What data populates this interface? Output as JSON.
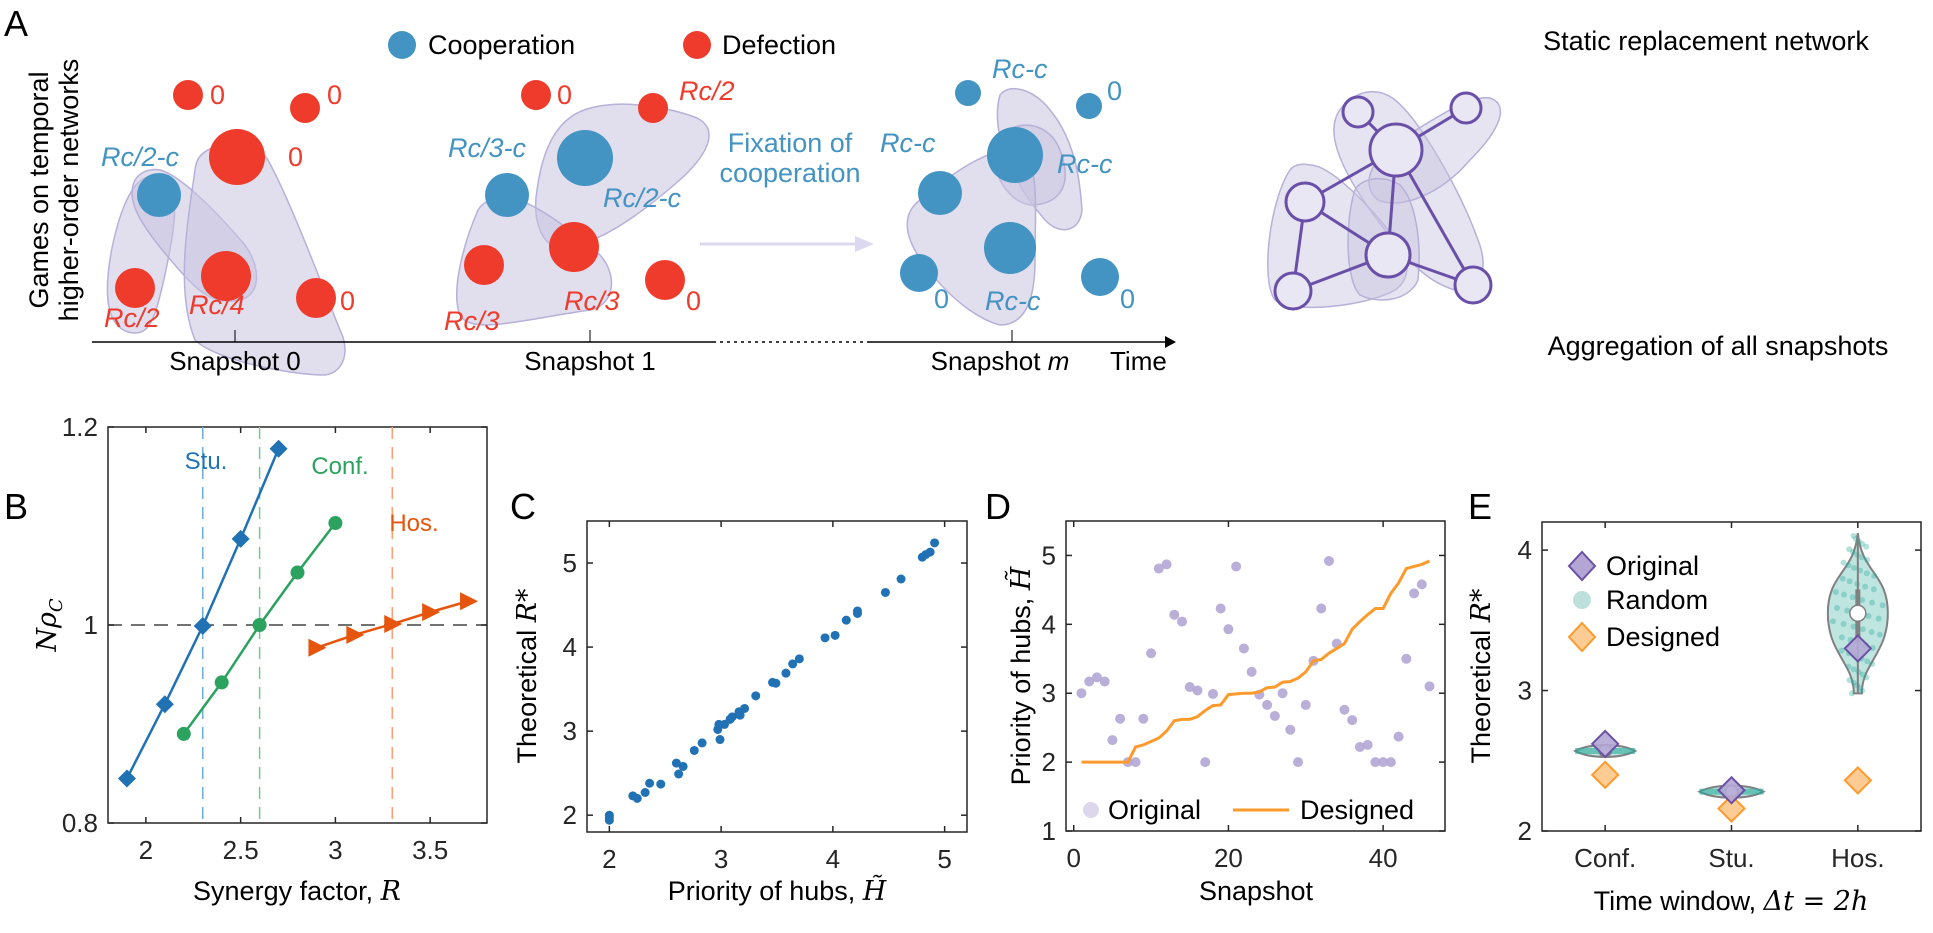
{
  "figure": {
    "panel_labels": [
      "A",
      "B",
      "C",
      "D",
      "E"
    ]
  },
  "panel_a": {
    "ylabel_line1": "Games on temporal",
    "ylabel_line2": "higher-order networks",
    "legend": [
      {
        "label": "Cooperation",
        "color": "#4393c3"
      },
      {
        "label": "Defection",
        "color": "#ef3b2c"
      }
    ],
    "fixation_line1": "Fixation of",
    "fixation_line2": "cooperation",
    "static_title": "Static replacement network",
    "aggregation_caption": "Aggregation of all snapshots",
    "timeline": {
      "snapshots": [
        "Snapshot 0",
        "Snapshot 1",
        "Snapshot"
      ],
      "snapshot_m_var": "m",
      "time_label": "Time"
    },
    "snapshot0_payoffs": {
      "top_left": "0",
      "top_right": "0",
      "big_top": "0",
      "blue": "Rc/2-c",
      "bottom_left": "Rc/2",
      "middle": "Rc/4",
      "bottom_right": "0"
    },
    "snapshot1_payoffs": {
      "top_left": "0",
      "top_right": "Rc/2",
      "big_blue": "Rc/2-c",
      "blue": "Rc/3-c",
      "bottom_left": "Rc/3",
      "middle": "Rc/3",
      "bottom_right": "0"
    },
    "snapshotm_payoffs": {
      "top": "Rc-c",
      "top_right": "0",
      "left": "Rc-c",
      "big": "Rc-c",
      "bottom": "Rc-c",
      "bottom_left": "0",
      "bottom_right": "0"
    },
    "colors": {
      "coop": "#4393c3",
      "defect": "#ef3b2c",
      "hyperedge": "#c8c3e0",
      "network": "#6a4fa8"
    }
  },
  "chart_data": [
    {
      "panel": "B",
      "type": "line",
      "title": "",
      "xlabel": "Synergy factor, ",
      "xlabel_var": "R",
      "ylabel_var": "Nρ",
      "ylabel_sub": "C",
      "xlim": [
        1.8,
        3.8
      ],
      "ylim": [
        0.8,
        1.2
      ],
      "xticks": [
        2,
        2.5,
        3,
        3.5
      ],
      "xtick_labels": [
        "2",
        "2.5",
        "3",
        "3.5"
      ],
      "yticks": [
        0.8,
        1,
        1.2
      ],
      "ytick_labels": [
        "0.8",
        "1",
        "1.2"
      ],
      "reference_hline": 1,
      "series": [
        {
          "name": "Stu.",
          "marker": "diamond",
          "color": "#2171b5",
          "threshold": 2.3,
          "x": [
            1.9,
            2.1,
            2.3,
            2.5,
            2.7
          ],
          "y": [
            0.845,
            0.92,
            0.999,
            1.087,
            1.178
          ]
        },
        {
          "name": "Conf.",
          "marker": "circle",
          "color": "#2ca25f",
          "threshold": 2.6,
          "x": [
            2.2,
            2.4,
            2.6,
            2.8,
            3.0
          ],
          "y": [
            0.89,
            0.942,
            1.0,
            1.053,
            1.103
          ]
        },
        {
          "name": "Hos.",
          "marker": "triangle-right",
          "color": "#e6550d",
          "threshold": 3.3,
          "x": [
            2.9,
            3.1,
            3.3,
            3.5,
            3.7
          ],
          "y": [
            0.977,
            0.99,
            1.001,
            1.013,
            1.024
          ]
        }
      ]
    },
    {
      "panel": "C",
      "type": "scatter",
      "title": "",
      "xlabel": "Priority of hubs, ",
      "xlabel_var": "H̃",
      "ylabel": "Theoretical ",
      "ylabel_var": "R*",
      "xlim": [
        1.8,
        5.2
      ],
      "ylim": [
        1.8,
        5.5
      ],
      "xticks": [
        2,
        3,
        4,
        5
      ],
      "xtick_labels": [
        "2",
        "3",
        "4",
        "5"
      ],
      "yticks": [
        2,
        3,
        4,
        5
      ],
      "ytick_labels": [
        "2",
        "3",
        "4",
        "5"
      ],
      "color": "#2171b5",
      "points": [
        [
          2.0,
          2.0
        ],
        [
          2.0,
          1.94
        ],
        [
          2.0,
          1.97
        ],
        [
          2.21,
          2.23
        ],
        [
          2.25,
          2.2
        ],
        [
          2.32,
          2.27
        ],
        [
          2.36,
          2.38
        ],
        [
          2.46,
          2.37
        ],
        [
          2.6,
          2.62
        ],
        [
          2.62,
          2.49
        ],
        [
          2.66,
          2.58
        ],
        [
          2.76,
          2.77
        ],
        [
          2.83,
          2.86
        ],
        [
          2.97,
          3.02
        ],
        [
          2.98,
          3.08
        ],
        [
          2.99,
          2.9
        ],
        [
          3.03,
          3.08
        ],
        [
          3.08,
          3.14
        ],
        [
          3.1,
          3.17
        ],
        [
          3.16,
          3.23
        ],
        [
          3.17,
          3.19
        ],
        [
          3.21,
          3.27
        ],
        [
          3.31,
          3.42
        ],
        [
          3.46,
          3.58
        ],
        [
          3.49,
          3.57
        ],
        [
          3.58,
          3.69
        ],
        [
          3.64,
          3.8
        ],
        [
          3.7,
          3.86
        ],
        [
          3.93,
          4.11
        ],
        [
          4.02,
          4.14
        ],
        [
          4.12,
          4.32
        ],
        [
          4.22,
          4.43
        ],
        [
          4.22,
          4.4
        ],
        [
          4.47,
          4.65
        ],
        [
          4.61,
          4.81
        ],
        [
          4.8,
          5.07
        ],
        [
          4.83,
          5.1
        ],
        [
          4.87,
          5.13
        ],
        [
          4.91,
          5.24
        ]
      ]
    },
    {
      "panel": "D",
      "type": "scatter",
      "title": "",
      "xlabel": "Snapshot",
      "ylabel": "Priority of hubs, ",
      "ylabel_var": "H̃",
      "xlim": [
        -1,
        48
      ],
      "ylim": [
        1,
        5.5
      ],
      "xticks": [
        0,
        20,
        40
      ],
      "xtick_labels": [
        "0",
        "20",
        "40"
      ],
      "yticks": [
        1,
        2,
        3,
        4,
        5
      ],
      "ytick_labels": [
        "1",
        "2",
        "3",
        "4",
        "5"
      ],
      "legend": "bottom",
      "series": [
        {
          "name": "Original",
          "kind": "scatter",
          "color": "#b3a6d4",
          "x": [
            1,
            2,
            3,
            4,
            5,
            6,
            7,
            8,
            9,
            10,
            11,
            12,
            13,
            14,
            15,
            16,
            17,
            18,
            19,
            20,
            21,
            22,
            23,
            24,
            25,
            26,
            27,
            28,
            29,
            30,
            31,
            32,
            33,
            34,
            35,
            36,
            37,
            38,
            39,
            40,
            41,
            42,
            43,
            44,
            45,
            46
          ],
          "y": [
            3.0,
            3.17,
            3.23,
            3.17,
            2.32,
            2.63,
            2.0,
            2.0,
            2.63,
            3.58,
            4.81,
            4.87,
            4.14,
            4.04,
            3.09,
            3.04,
            2.0,
            2.99,
            4.23,
            3.93,
            4.84,
            3.65,
            3.31,
            2.98,
            2.83,
            2.67,
            3.0,
            2.47,
            2.0,
            2.83,
            3.47,
            4.23,
            4.92,
            3.72,
            2.76,
            2.61,
            2.22,
            2.25,
            2.0,
            2.0,
            2.0,
            2.37,
            3.5,
            4.45,
            4.58,
            3.1
          ]
        },
        {
          "name": "Designed",
          "kind": "line",
          "color": "#fd9a2c",
          "x": [
            1,
            2,
            3,
            4,
            5,
            6,
            7,
            8,
            9,
            10,
            11,
            12,
            13,
            14,
            15,
            16,
            17,
            18,
            19,
            20,
            21,
            22,
            23,
            24,
            25,
            26,
            27,
            28,
            29,
            30,
            31,
            32,
            33,
            34,
            35,
            36,
            37,
            38,
            39,
            40,
            41,
            42,
            43,
            44,
            45,
            46
          ],
          "y": [
            2.0,
            2.0,
            2.0,
            2.0,
            2.0,
            2.0,
            2.0,
            2.22,
            2.25,
            2.3,
            2.35,
            2.45,
            2.6,
            2.62,
            2.62,
            2.66,
            2.75,
            2.82,
            2.83,
            2.98,
            2.99,
            3.0,
            3.0,
            3.02,
            3.08,
            3.09,
            3.16,
            3.17,
            3.22,
            3.31,
            3.47,
            3.49,
            3.58,
            3.65,
            3.72,
            3.93,
            4.04,
            4.14,
            4.23,
            4.23,
            4.45,
            4.6,
            4.81,
            4.84,
            4.87,
            4.92
          ]
        }
      ]
    },
    {
      "panel": "E",
      "type": "violin",
      "title": "",
      "xlabel": "Time window, ",
      "xlabel_var": "Δt = 2h",
      "ylabel": "Theoretical ",
      "ylabel_var": "R*",
      "ylim": [
        2,
        4.2
      ],
      "yticks": [
        2,
        3,
        4
      ],
      "ytick_labels": [
        "2",
        "3",
        "4"
      ],
      "categories": [
        "Conf.",
        "Stu.",
        "Hos."
      ],
      "legend": "top-left",
      "legend_entries": [
        {
          "name": "Original",
          "color": "#6a51a3",
          "fill": "#b3a6d4"
        },
        {
          "name": "Random",
          "color": "#9fd3cc",
          "fill": "#9fd3cc"
        },
        {
          "name": "Designed",
          "color": "#fd9a2c",
          "fill": "#fdcc95"
        }
      ],
      "original": [
        2.62,
        2.29,
        3.3
      ],
      "designed": [
        2.4,
        2.16,
        2.36
      ],
      "random_median": [
        2.57,
        2.28,
        3.55
      ],
      "random_min": [
        2.5,
        2.25,
        2.98
      ],
      "random_max": [
        2.65,
        2.31,
        4.12
      ],
      "random_q1": [
        2.55,
        2.27,
        3.35
      ],
      "random_q3": [
        2.6,
        2.29,
        3.72
      ]
    }
  ]
}
